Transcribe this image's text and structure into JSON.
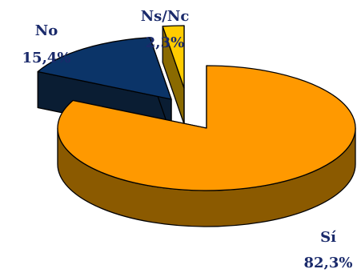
{
  "chart_data": {
    "type": "pie",
    "style": "3d-exploded",
    "slices": [
      {
        "label": "Sí",
        "value": 82.3,
        "value_text": "82,3%",
        "color": "#ff9900",
        "side_color": "#8b5a00"
      },
      {
        "label": "No",
        "value": 15.4,
        "value_text": "15,4%",
        "color": "#0b3468",
        "side_color": "#0a1d33"
      },
      {
        "label": "Ns/Nc",
        "value": 2.3,
        "value_text": "2,3%",
        "color": "#ffcc00",
        "side_color": "#8a6a00"
      }
    ],
    "title": "",
    "legend": "none"
  }
}
